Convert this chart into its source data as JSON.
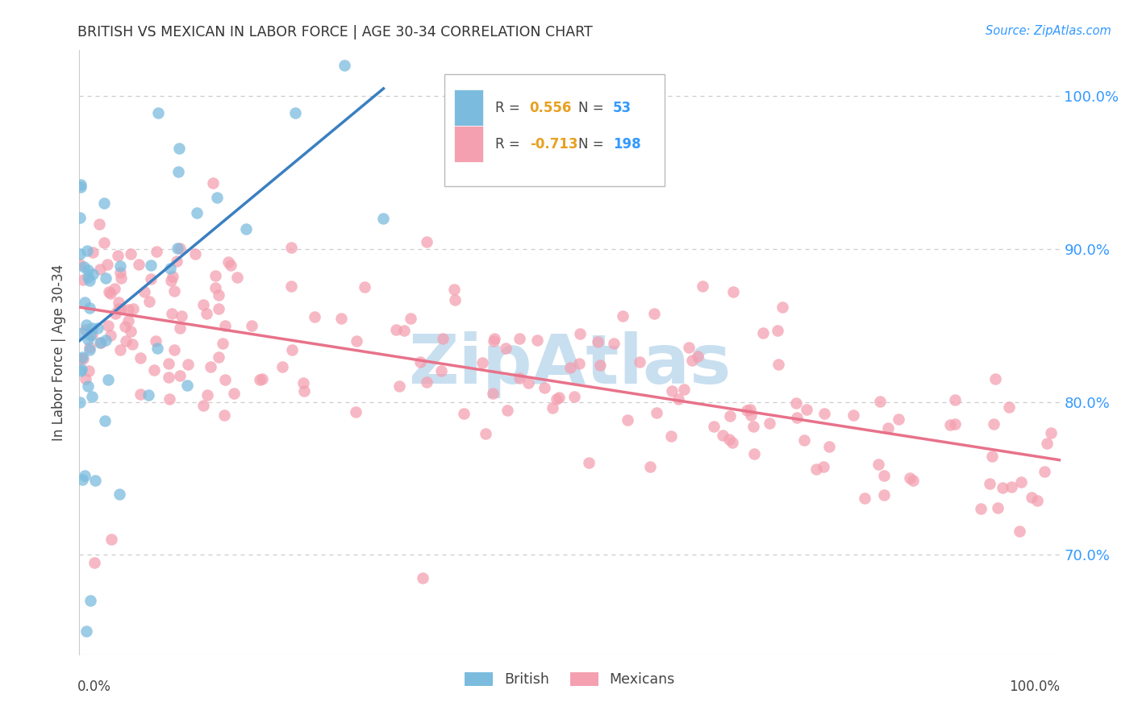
{
  "title": "BRITISH VS MEXICAN IN LABOR FORCE | AGE 30-34 CORRELATION CHART",
  "source": "Source: ZipAtlas.com",
  "ylabel": "In Labor Force | Age 30-34",
  "y_tick_values": [
    0.7,
    0.8,
    0.9,
    1.0
  ],
  "british_r": 0.556,
  "british_n": 53,
  "mexican_r": -0.713,
  "mexican_n": 198,
  "british_color": "#7bbcde",
  "mexican_color": "#f4a0b0",
  "british_line_color": "#3a7fc1",
  "mexican_line_color": "#e8728a",
  "r_color": "#e8a020",
  "n_color": "#3399ff",
  "background_color": "#ffffff",
  "grid_color": "#cccccc",
  "axis_color": "#888888",
  "text_color": "#444444",
  "title_color": "#333333",
  "watermark_color": "#c8dff0",
  "xlim": [
    0.0,
    1.0
  ],
  "ylim": [
    0.635,
    1.03
  ],
  "brit_line_x0": 0.0,
  "brit_line_x1": 0.31,
  "brit_line_y0": 0.84,
  "brit_line_y1": 1.005,
  "mex_line_x0": 0.0,
  "mex_line_x1": 1.0,
  "mex_line_y0": 0.862,
  "mex_line_y1": 0.762
}
